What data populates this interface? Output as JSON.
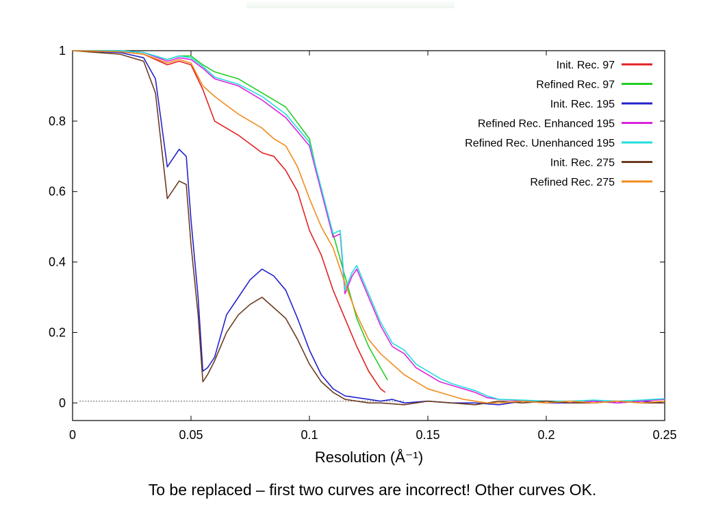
{
  "caption": "To be replaced – first two curves are incorrect! Other curves OK.",
  "chart_data": {
    "type": "line",
    "title": "",
    "xlabel": "Resolution (Å⁻¹)",
    "ylabel": "",
    "xlim": [
      0,
      0.25
    ],
    "ylim": [
      -0.05,
      1.0
    ],
    "x_ticks": [
      {
        "value": 0,
        "label": "0"
      },
      {
        "value": 0.05,
        "label": "0.05"
      },
      {
        "value": 0.1,
        "label": "0.1"
      },
      {
        "value": 0.15,
        "label": "0.15"
      },
      {
        "value": 0.2,
        "label": "0.2"
      },
      {
        "value": 0.25,
        "label": "0.25"
      }
    ],
    "y_ticks": [
      {
        "value": 0,
        "label": "0"
      },
      {
        "value": 0.2,
        "label": "0.2"
      },
      {
        "value": 0.4,
        "label": "0.4"
      },
      {
        "value": 0.6,
        "label": "0.6"
      },
      {
        "value": 0.8,
        "label": "0.8"
      },
      {
        "value": 1,
        "label": "1"
      }
    ],
    "grid": false,
    "legend_position": "top-right",
    "reference_line": {
      "y": 0.005,
      "style": "dotted",
      "color": "#555555"
    },
    "series": [
      {
        "name": "Init. Rec. 97",
        "color": "#e02020",
        "x": [
          0,
          0.02,
          0.03,
          0.04,
          0.045,
          0.05,
          0.055,
          0.06,
          0.07,
          0.08,
          0.085,
          0.09,
          0.095,
          0.1,
          0.105,
          0.11,
          0.115,
          0.12,
          0.125,
          0.13,
          0.132
        ],
        "y": [
          1.0,
          0.997,
          0.99,
          0.96,
          0.97,
          0.96,
          0.89,
          0.8,
          0.76,
          0.71,
          0.7,
          0.66,
          0.6,
          0.49,
          0.42,
          0.32,
          0.24,
          0.16,
          0.09,
          0.04,
          0.03
        ]
      },
      {
        "name": "Refined Rec. 97",
        "color": "#22cc22",
        "x": [
          0,
          0.02,
          0.03,
          0.04,
          0.045,
          0.05,
          0.055,
          0.06,
          0.07,
          0.08,
          0.09,
          0.1,
          0.105,
          0.11,
          0.115,
          0.12,
          0.125,
          0.13,
          0.133
        ],
        "y": [
          1.0,
          1.0,
          0.995,
          0.975,
          0.985,
          0.985,
          0.96,
          0.94,
          0.92,
          0.88,
          0.84,
          0.75,
          0.6,
          0.48,
          0.36,
          0.24,
          0.16,
          0.1,
          0.065
        ]
      },
      {
        "name": "Init. Rec. 195",
        "color": "#2222cc",
        "x": [
          0,
          0.02,
          0.03,
          0.035,
          0.04,
          0.045,
          0.048,
          0.05,
          0.053,
          0.055,
          0.057,
          0.06,
          0.065,
          0.07,
          0.075,
          0.08,
          0.085,
          0.09,
          0.095,
          0.1,
          0.105,
          0.11,
          0.115,
          0.12,
          0.125,
          0.13,
          0.135,
          0.14,
          0.15,
          0.16,
          0.17,
          0.18,
          0.19,
          0.2,
          0.21,
          0.22,
          0.23,
          0.24,
          0.25
        ],
        "y": [
          1.0,
          0.995,
          0.98,
          0.92,
          0.67,
          0.72,
          0.7,
          0.52,
          0.3,
          0.09,
          0.1,
          0.13,
          0.25,
          0.3,
          0.35,
          0.38,
          0.36,
          0.32,
          0.24,
          0.15,
          0.08,
          0.04,
          0.02,
          0.015,
          0.01,
          0.005,
          0.01,
          0.0,
          0.005,
          0.0,
          0.0,
          -0.005,
          0.005,
          0.0,
          0.0,
          0.005,
          0.0,
          0.005,
          0.0
        ]
      },
      {
        "name": "Refined Rec. Enhanced 195",
        "color": "#dd22dd",
        "x": [
          0,
          0.02,
          0.03,
          0.04,
          0.045,
          0.05,
          0.055,
          0.06,
          0.07,
          0.08,
          0.09,
          0.1,
          0.105,
          0.11,
          0.113,
          0.115,
          0.118,
          0.12,
          0.125,
          0.13,
          0.135,
          0.14,
          0.145,
          0.15,
          0.155,
          0.16,
          0.165,
          0.17,
          0.175,
          0.18,
          0.19,
          0.2,
          0.21,
          0.22,
          0.23,
          0.24,
          0.25
        ],
        "y": [
          1.0,
          1.0,
          0.995,
          0.97,
          0.98,
          0.975,
          0.95,
          0.92,
          0.9,
          0.86,
          0.81,
          0.73,
          0.6,
          0.47,
          0.48,
          0.31,
          0.36,
          0.38,
          0.3,
          0.22,
          0.16,
          0.14,
          0.1,
          0.08,
          0.06,
          0.05,
          0.04,
          0.03,
          0.015,
          0.01,
          0.005,
          0.005,
          0.0,
          0.005,
          0.0,
          0.005,
          0.01
        ]
      },
      {
        "name": "Refined Rec. Unenhanced 195",
        "color": "#22dddd",
        "x": [
          0,
          0.02,
          0.03,
          0.04,
          0.045,
          0.05,
          0.055,
          0.06,
          0.07,
          0.08,
          0.09,
          0.1,
          0.105,
          0.11,
          0.113,
          0.115,
          0.118,
          0.12,
          0.125,
          0.13,
          0.135,
          0.14,
          0.145,
          0.15,
          0.155,
          0.16,
          0.165,
          0.17,
          0.175,
          0.18,
          0.19,
          0.2,
          0.21,
          0.22,
          0.23,
          0.24,
          0.25
        ],
        "y": [
          1.0,
          1.0,
          0.995,
          0.975,
          0.985,
          0.98,
          0.955,
          0.925,
          0.905,
          0.87,
          0.82,
          0.74,
          0.61,
          0.48,
          0.49,
          0.32,
          0.37,
          0.39,
          0.31,
          0.23,
          0.17,
          0.15,
          0.11,
          0.09,
          0.07,
          0.055,
          0.045,
          0.035,
          0.02,
          0.01,
          0.008,
          0.005,
          0.005,
          0.008,
          0.005,
          0.008,
          0.012
        ]
      },
      {
        "name": "Init. Rec. 275",
        "color": "#6b3a1f",
        "x": [
          0,
          0.02,
          0.03,
          0.035,
          0.04,
          0.045,
          0.048,
          0.05,
          0.053,
          0.055,
          0.057,
          0.06,
          0.065,
          0.07,
          0.075,
          0.08,
          0.085,
          0.09,
          0.095,
          0.1,
          0.105,
          0.11,
          0.115,
          0.12,
          0.125,
          0.13,
          0.14,
          0.15,
          0.16,
          0.17,
          0.18,
          0.19,
          0.2,
          0.21,
          0.22,
          0.23,
          0.24,
          0.25
        ],
        "y": [
          1.0,
          0.99,
          0.97,
          0.88,
          0.58,
          0.63,
          0.62,
          0.45,
          0.25,
          0.06,
          0.08,
          0.12,
          0.2,
          0.25,
          0.28,
          0.3,
          0.27,
          0.24,
          0.18,
          0.11,
          0.06,
          0.03,
          0.01,
          0.005,
          0.0,
          0.0,
          -0.005,
          0.005,
          0.0,
          -0.005,
          0.005,
          0.0,
          0.005,
          0.0,
          0.0,
          0.005,
          0.0,
          0.0
        ]
      },
      {
        "name": "Refined Rec. 275",
        "color": "#f08a1c",
        "x": [
          0,
          0.02,
          0.03,
          0.04,
          0.045,
          0.05,
          0.055,
          0.06,
          0.07,
          0.08,
          0.085,
          0.09,
          0.095,
          0.1,
          0.105,
          0.11,
          0.115,
          0.12,
          0.125,
          0.13,
          0.135,
          0.14,
          0.145,
          0.15,
          0.155,
          0.16,
          0.165,
          0.17,
          0.175,
          0.18,
          0.19,
          0.2,
          0.21,
          0.22,
          0.23,
          0.24,
          0.25
        ],
        "y": [
          1.0,
          0.997,
          0.99,
          0.965,
          0.975,
          0.965,
          0.9,
          0.87,
          0.82,
          0.78,
          0.75,
          0.73,
          0.67,
          0.58,
          0.5,
          0.44,
          0.34,
          0.25,
          0.18,
          0.14,
          0.11,
          0.08,
          0.06,
          0.04,
          0.03,
          0.02,
          0.01,
          0.005,
          0.0,
          0.0,
          0.005,
          0.0,
          0.005,
          0.0,
          0.005,
          0.0,
          0.005
        ]
      }
    ]
  }
}
